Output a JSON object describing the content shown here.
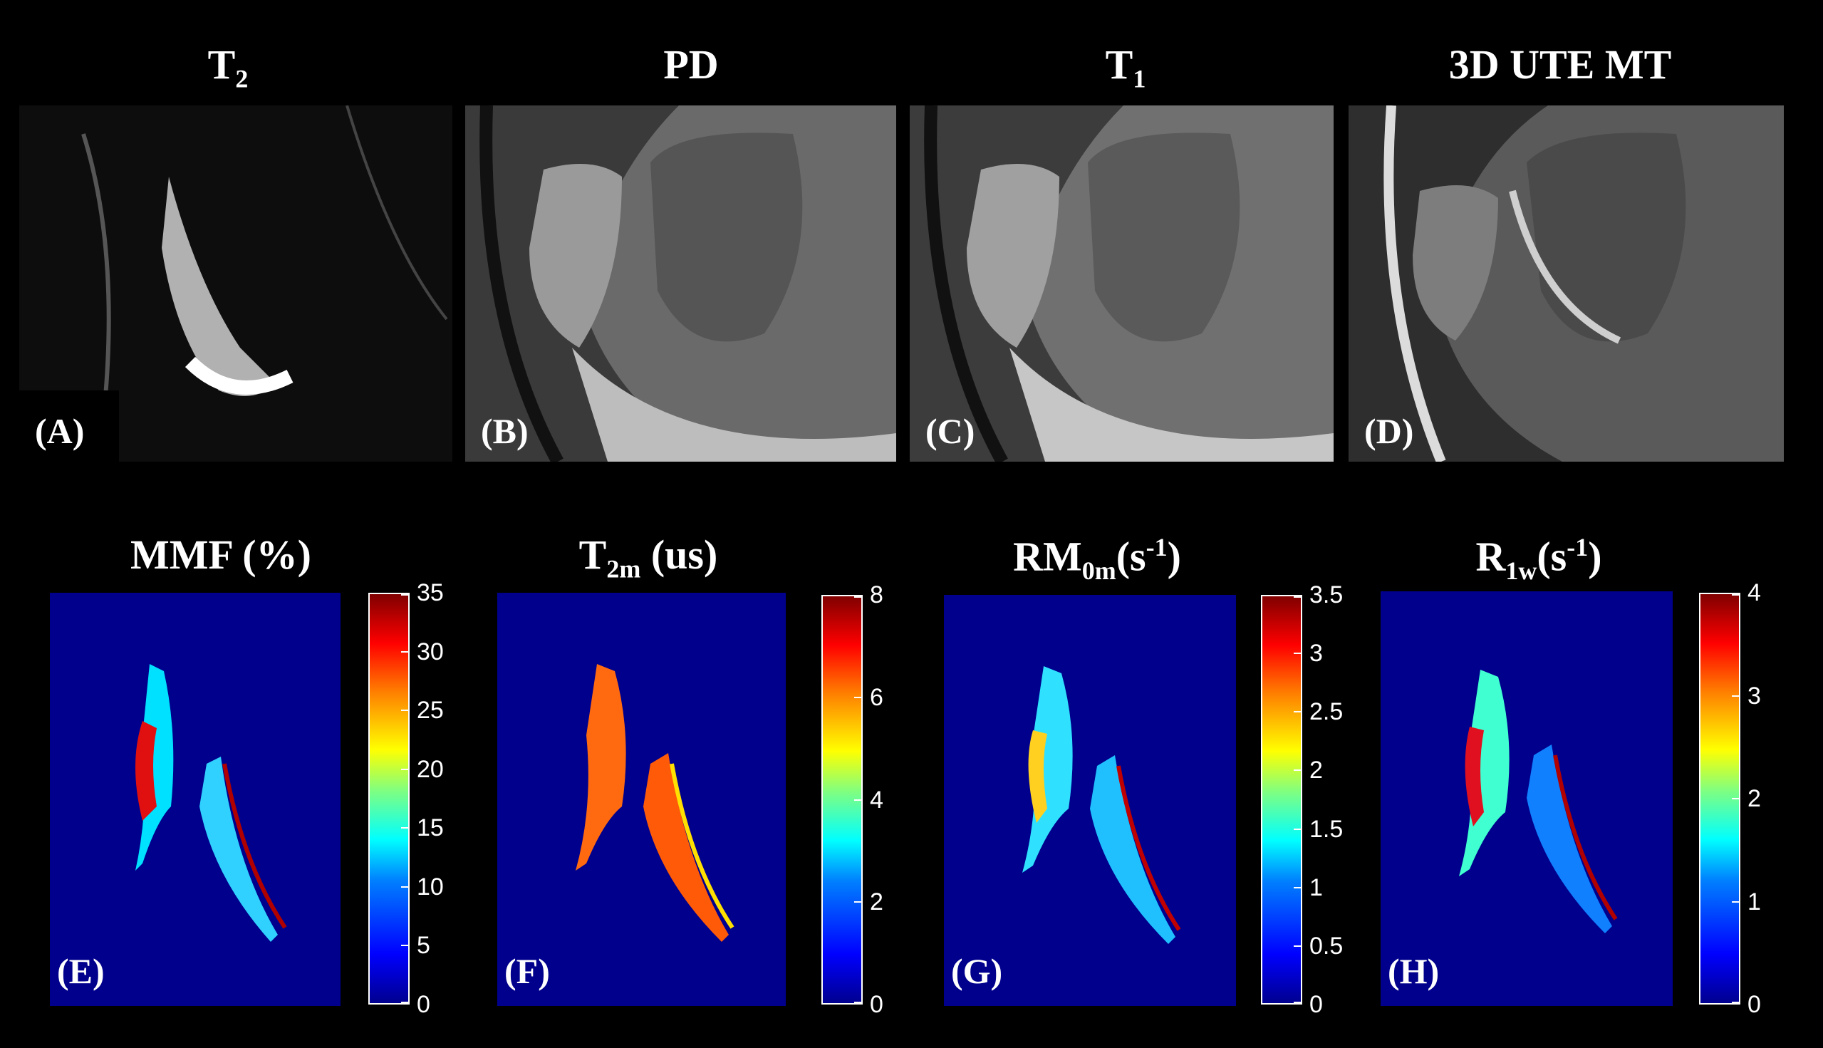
{
  "top_titles": {
    "t2": {
      "base": "T",
      "sub": "2"
    },
    "pd": "PD",
    "t1": {
      "base": "T",
      "sub": "1"
    },
    "ute": "3D UTE MT"
  },
  "bottom_titles": {
    "mmf": "MMF (%)",
    "t2m": {
      "base": "T",
      "sub": "2m",
      "rest": " (us)"
    },
    "rm0m": {
      "base": "RM",
      "sub": "0m",
      "rest": "(s",
      "sup": "-1",
      "end": ")"
    },
    "r1w": {
      "base": "R",
      "sub": "1w",
      "rest": "(s",
      "sup": "-1",
      "end": ")"
    }
  },
  "panel_labels": [
    "(A)",
    "(B)",
    "(C)",
    "(D)",
    "(E)",
    "(F)",
    "(G)",
    "(H)"
  ],
  "colorbars": {
    "mmf": [
      "35",
      "30",
      "25",
      "20",
      "15",
      "10",
      "5",
      "0"
    ],
    "t2m": [
      "8",
      "6",
      "4",
      "2",
      "0"
    ],
    "rm0m": [
      "3.5",
      "3",
      "2.5",
      "2",
      "1.5",
      "1",
      "0.5",
      "0"
    ],
    "r1w": [
      "4",
      "3",
      "2",
      "1",
      "0"
    ]
  },
  "colors": {
    "map_background": "#00008c",
    "background": "#000000"
  }
}
